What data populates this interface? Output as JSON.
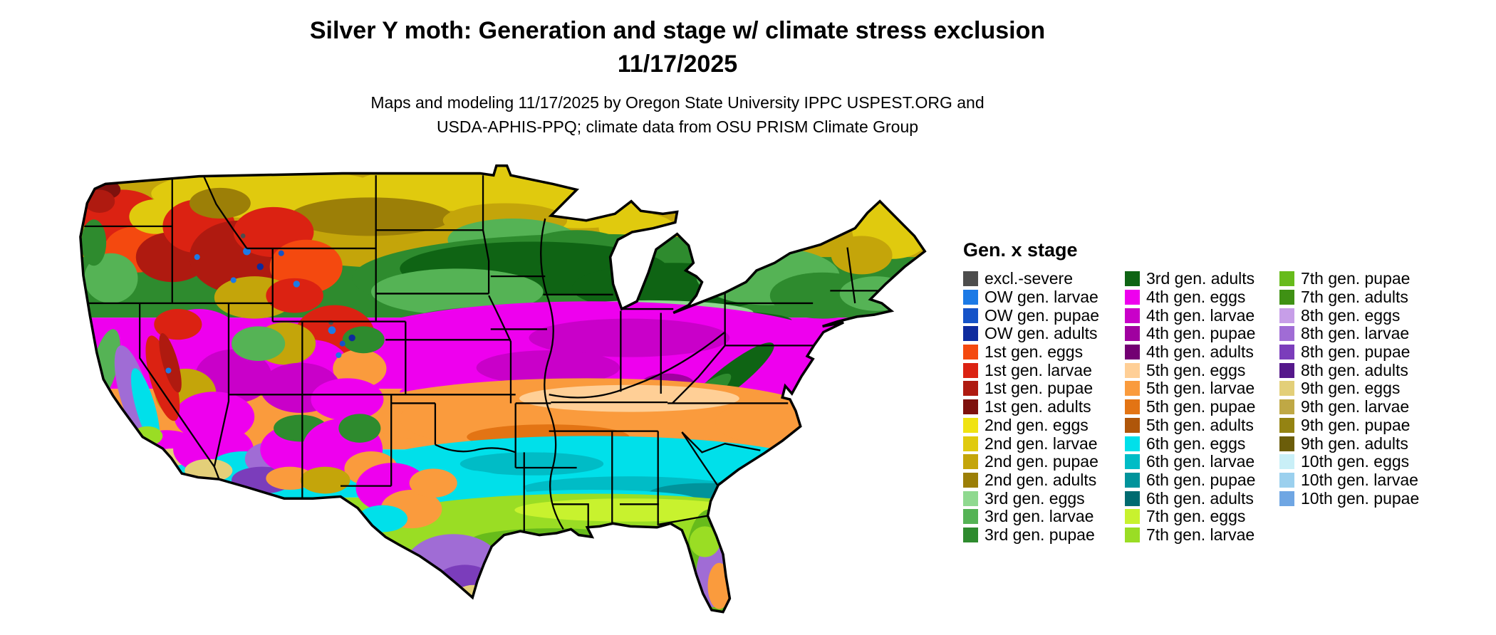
{
  "header": {
    "title": "Silver Y moth: Generation and stage w/ climate stress exclusion",
    "date": "11/17/2025",
    "credits_line1": "Maps and modeling 11/17/2025 by Oregon State University IPPC USPEST.ORG and",
    "credits_line2": "USDA-APHIS-PPQ; climate data from OSU PRISM Climate Group"
  },
  "legend": {
    "title": "Gen. x stage",
    "columns": [
      [
        {
          "label": "excl.-severe",
          "color_key": "excl"
        },
        {
          "label": "OW gen. larvae",
          "color_key": "ow_larvae"
        },
        {
          "label": "OW gen. pupae",
          "color_key": "ow_pupae"
        },
        {
          "label": "OW gen. adults",
          "color_key": "ow_adults"
        },
        {
          "label": "1st gen. eggs",
          "color_key": "g1_eggs"
        },
        {
          "label": "1st gen. larvae",
          "color_key": "g1_larvae"
        },
        {
          "label": "1st gen. pupae",
          "color_key": "g1_pupae"
        },
        {
          "label": "1st gen. adults",
          "color_key": "g1_adults"
        },
        {
          "label": "2nd gen. eggs",
          "color_key": "g2_eggs"
        },
        {
          "label": "2nd gen. larvae",
          "color_key": "g2_larvae"
        },
        {
          "label": "2nd gen. pupae",
          "color_key": "g2_pupae"
        },
        {
          "label": "2nd gen. adults",
          "color_key": "g2_adults"
        },
        {
          "label": "3rd gen. eggs",
          "color_key": "g3_eggs"
        },
        {
          "label": "3rd gen. larvae",
          "color_key": "g3_larvae"
        },
        {
          "label": "3rd gen. pupae",
          "color_key": "g3_pupae"
        }
      ],
      [
        {
          "label": "3rd gen. adults",
          "color_key": "g3_adults"
        },
        {
          "label": "4th gen. eggs",
          "color_key": "g4_eggs"
        },
        {
          "label": "4th gen. larvae",
          "color_key": "g4_larvae"
        },
        {
          "label": "4th gen. pupae",
          "color_key": "g4_pupae"
        },
        {
          "label": "4th gen. adults",
          "color_key": "g4_adults"
        },
        {
          "label": "5th gen. eggs",
          "color_key": "g5_eggs"
        },
        {
          "label": "5th gen. larvae",
          "color_key": "g5_larvae"
        },
        {
          "label": "5th gen. pupae",
          "color_key": "g5_pupae"
        },
        {
          "label": "5th gen. adults",
          "color_key": "g5_adults"
        },
        {
          "label": "6th gen. eggs",
          "color_key": "g6_eggs"
        },
        {
          "label": "6th gen. larvae",
          "color_key": "g6_larvae"
        },
        {
          "label": "6th gen. pupae",
          "color_key": "g6_pupae"
        },
        {
          "label": "6th gen. adults",
          "color_key": "g6_adults"
        },
        {
          "label": "7th gen. eggs",
          "color_key": "g7_eggs"
        },
        {
          "label": "7th gen. larvae",
          "color_key": "g7_larvae"
        }
      ],
      [
        {
          "label": "7th gen. pupae",
          "color_key": "g7_pupae"
        },
        {
          "label": "7th gen. adults",
          "color_key": "g7_adults"
        },
        {
          "label": "8th gen. eggs",
          "color_key": "g8_eggs"
        },
        {
          "label": "8th gen. larvae",
          "color_key": "g8_larvae"
        },
        {
          "label": "8th gen. pupae",
          "color_key": "g8_pupae"
        },
        {
          "label": "8th gen. adults",
          "color_key": "g8_adults"
        },
        {
          "label": "9th gen. eggs",
          "color_key": "g9_eggs"
        },
        {
          "label": "9th gen. larvae",
          "color_key": "g9_larvae"
        },
        {
          "label": "9th gen. pupae",
          "color_key": "g9_pupae"
        },
        {
          "label": "9th gen. adults",
          "color_key": "g9_adults"
        },
        {
          "label": "10th gen. eggs",
          "color_key": "g10_eggs"
        },
        {
          "label": "10th gen. larvae",
          "color_key": "g10_larvae"
        },
        {
          "label": "10th gen. pupae",
          "color_key": "g10_pupae"
        }
      ]
    ]
  },
  "palette": {
    "excl": "#4D4D4D",
    "ow_larvae": "#1C7AE6",
    "ow_pupae": "#1553C8",
    "ow_adults": "#0E2B9E",
    "g1_eggs": "#F4490F",
    "g1_larvae": "#DB2212",
    "g1_pupae": "#AF1A10",
    "g1_adults": "#7E110D",
    "g2_eggs": "#F0E312",
    "g2_larvae": "#E0CA0E",
    "g2_pupae": "#C4A50A",
    "g2_adults": "#9C7F07",
    "g3_eggs": "#8FD98F",
    "g3_larvae": "#55B355",
    "g3_pupae": "#2E8B2E",
    "g3_adults": "#0F6414",
    "g4_eggs": "#EE00EE",
    "g4_larvae": "#C900C9",
    "g4_pupae": "#A000A0",
    "g4_adults": "#730073",
    "g5_eggs": "#FFCF96",
    "g5_larvae": "#FA9B3D",
    "g5_pupae": "#E37414",
    "g5_adults": "#AF560A",
    "g6_eggs": "#00E0EA",
    "g6_larvae": "#00BCC6",
    "g6_pupae": "#00939B",
    "g6_adults": "#006B70",
    "g7_eggs": "#C8F22E",
    "g7_larvae": "#9ADD24",
    "g7_pupae": "#67BB1B",
    "g7_adults": "#3F9114",
    "g8_eggs": "#C79EE8",
    "g8_larvae": "#A06CD5",
    "g8_pupae": "#7B3DBB",
    "g8_adults": "#55188B",
    "g9_eggs": "#E3CF79",
    "g9_larvae": "#BFA845",
    "g9_pupae": "#948312",
    "g9_adults": "#6B5D0A",
    "g10_eggs": "#C9EFF7",
    "g10_larvae": "#9BD0EE",
    "g10_pupae": "#6FA6E3"
  }
}
